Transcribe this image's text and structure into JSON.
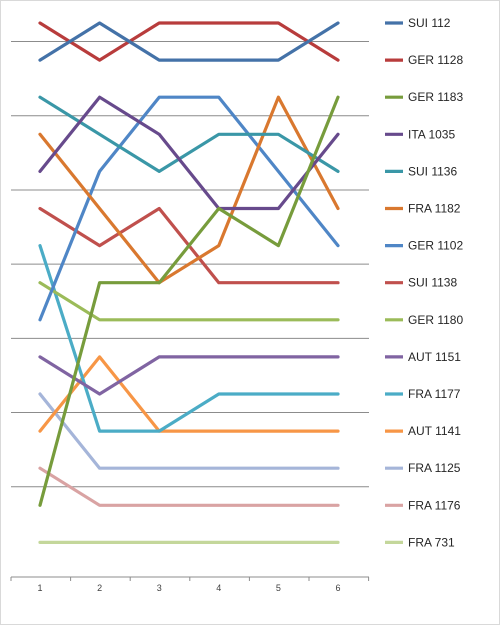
{
  "chart_data": {
    "type": "line",
    "title": "",
    "xlabel": "",
    "ylabel": "",
    "x": [
      "1",
      "2",
      "3",
      "4",
      "5",
      "6"
    ],
    "ylim": [
      1,
      15
    ],
    "y_inverted": true,
    "grid": true,
    "legend_placement": "right",
    "series": [
      {
        "name": "SUI 112",
        "color": "#4472a8",
        "values": [
          2,
          1,
          2,
          2,
          2,
          1
        ]
      },
      {
        "name": "GER 1128",
        "color": "#b83c3c",
        "values": [
          1,
          2,
          1,
          1,
          1,
          2
        ]
      },
      {
        "name": "GER 1183",
        "color": "#779c3c",
        "values": [
          14,
          8,
          8,
          6,
          7,
          3
        ]
      },
      {
        "name": "ITA 1035",
        "color": "#674a8c",
        "values": [
          5,
          3,
          4,
          6,
          6,
          4
        ]
      },
      {
        "name": "SUI 1136",
        "color": "#3a97a7",
        "values": [
          3,
          4,
          5,
          4,
          4,
          5
        ]
      },
      {
        "name": "FRA 1182",
        "color": "#d9782f",
        "values": [
          4,
          6,
          8,
          7,
          3,
          6
        ]
      },
      {
        "name": "GER 1102",
        "color": "#4f86c6",
        "values": [
          9,
          5,
          3,
          3,
          5,
          7
        ]
      },
      {
        "name": "SUI 1138",
        "color": "#c0504d",
        "values": [
          6,
          7,
          6,
          8,
          8,
          8
        ]
      },
      {
        "name": "GER 1180",
        "color": "#9bbb59",
        "values": [
          8,
          9,
          9,
          9,
          9,
          9
        ]
      },
      {
        "name": "AUT 1151",
        "color": "#8064a2",
        "values": [
          10,
          11,
          10,
          10,
          10,
          10
        ]
      },
      {
        "name": "FRA 1177",
        "color": "#4bacc6",
        "values": [
          7,
          12,
          12,
          11,
          11,
          11
        ]
      },
      {
        "name": "AUT 1141",
        "color": "#f79646",
        "values": [
          12,
          10,
          12,
          12,
          12,
          12
        ]
      },
      {
        "name": "FRA 1125",
        "color": "#a5b5d9",
        "values": [
          11,
          13,
          13,
          13,
          13,
          13
        ]
      },
      {
        "name": "FRA 1176",
        "color": "#d9a3a3",
        "values": [
          13,
          14,
          14,
          14,
          14,
          14
        ]
      },
      {
        "name": "FRA 731",
        "color": "#c4d79b",
        "values": [
          15,
          15,
          15,
          15,
          15,
          15
        ]
      }
    ]
  }
}
